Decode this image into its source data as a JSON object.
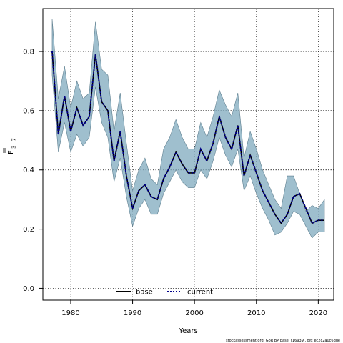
{
  "chart_data": {
    "type": "line",
    "xlabel": "Years",
    "ylabel_main": "F",
    "ylabel_sub": "3−7",
    "xlim": [
      1975.5,
      2022.5
    ],
    "ylim": [
      -0.04,
      0.945
    ],
    "x_ticks": [
      1980,
      1990,
      2000,
      2010,
      2020
    ],
    "y_ticks": [
      0.0,
      0.2,
      0.4,
      0.6,
      0.8
    ],
    "y_tick_labels": [
      "0.0",
      "0.2",
      "0.4",
      "0.6",
      "0.8"
    ],
    "grid": true,
    "legend_placement": "bottom-center",
    "years": [
      1977,
      1978,
      1979,
      1980,
      1981,
      1982,
      1983,
      1984,
      1985,
      1986,
      1987,
      1988,
      1989,
      1990,
      1991,
      1992,
      1993,
      1994,
      1995,
      1996,
      1997,
      1998,
      1999,
      2000,
      2001,
      2002,
      2003,
      2004,
      2005,
      2006,
      2007,
      2008,
      2009,
      2010,
      2011,
      2012,
      2013,
      2014,
      2015,
      2016,
      2017,
      2018,
      2019,
      2020,
      2021
    ],
    "series": [
      {
        "name": "base",
        "color": "#000000",
        "style": "solid",
        "values": [
          0.8,
          0.52,
          0.65,
          0.53,
          0.61,
          0.55,
          0.58,
          0.79,
          0.63,
          0.6,
          0.43,
          0.53,
          0.38,
          0.27,
          0.33,
          0.35,
          0.31,
          0.3,
          0.37,
          0.41,
          0.46,
          0.42,
          0.39,
          0.39,
          0.47,
          0.43,
          0.49,
          0.58,
          0.51,
          0.47,
          0.55,
          0.38,
          0.45,
          0.39,
          0.33,
          0.29,
          0.25,
          0.22,
          0.25,
          0.31,
          0.32,
          0.27,
          0.22,
          0.23,
          0.23
        ]
      },
      {
        "name": "current",
        "color": "#00008b",
        "style": "dotted",
        "values": [
          0.8,
          0.52,
          0.65,
          0.53,
          0.61,
          0.55,
          0.58,
          0.79,
          0.63,
          0.6,
          0.43,
          0.53,
          0.38,
          0.27,
          0.33,
          0.35,
          0.31,
          0.3,
          0.37,
          0.41,
          0.46,
          0.42,
          0.39,
          0.39,
          0.47,
          0.43,
          0.49,
          0.58,
          0.51,
          0.47,
          0.55,
          0.38,
          0.45,
          0.39,
          0.33,
          0.29,
          0.25,
          0.22,
          0.25,
          0.31,
          0.32,
          0.27,
          0.22,
          0.23,
          0.23
        ]
      }
    ],
    "band": {
      "color": "#7faabd",
      "upper": [
        0.91,
        0.64,
        0.75,
        0.61,
        0.7,
        0.64,
        0.66,
        0.9,
        0.74,
        0.72,
        0.53,
        0.66,
        0.49,
        0.33,
        0.4,
        0.44,
        0.37,
        0.35,
        0.47,
        0.51,
        0.57,
        0.51,
        0.47,
        0.47,
        0.56,
        0.51,
        0.58,
        0.67,
        0.62,
        0.58,
        0.66,
        0.44,
        0.53,
        0.47,
        0.4,
        0.35,
        0.3,
        0.27,
        0.38,
        0.38,
        0.32,
        0.26,
        0.28,
        0.27,
        0.3
      ],
      "lower": [
        0.72,
        0.46,
        0.56,
        0.46,
        0.52,
        0.48,
        0.51,
        0.68,
        0.56,
        0.51,
        0.36,
        0.44,
        0.31,
        0.21,
        0.27,
        0.3,
        0.25,
        0.25,
        0.32,
        0.36,
        0.4,
        0.36,
        0.34,
        0.34,
        0.4,
        0.37,
        0.43,
        0.51,
        0.45,
        0.41,
        0.47,
        0.33,
        0.38,
        0.32,
        0.27,
        0.23,
        0.18,
        0.19,
        0.22,
        0.26,
        0.25,
        0.21,
        0.17,
        0.19,
        0.19
      ]
    },
    "footnote": "stockassessment.org, GoR BP base, r16939 , git: ec2c2a0c6dde"
  }
}
